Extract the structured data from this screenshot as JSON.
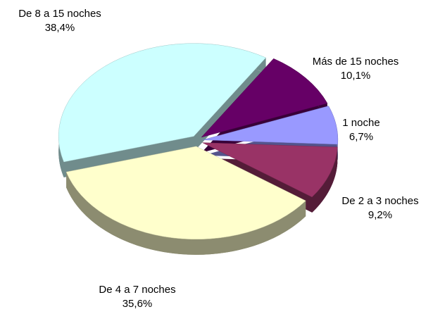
{
  "chart_data": {
    "type": "pie",
    "categories": [
      "De 8 a 15 noches",
      "Más de 15 noches",
      "1 noche",
      "De 2 a 3 noches",
      "De 4 a 7 noches"
    ],
    "values": [
      38.4,
      10.1,
      6.7,
      9.2,
      35.6
    ],
    "value_labels": [
      "38,4%",
      "10,1%",
      "6,7%",
      "9,2%",
      "35,6%"
    ],
    "colors": [
      "#ccffff",
      "#660066",
      "#9999ff",
      "#993366",
      "#ffffcc"
    ]
  }
}
